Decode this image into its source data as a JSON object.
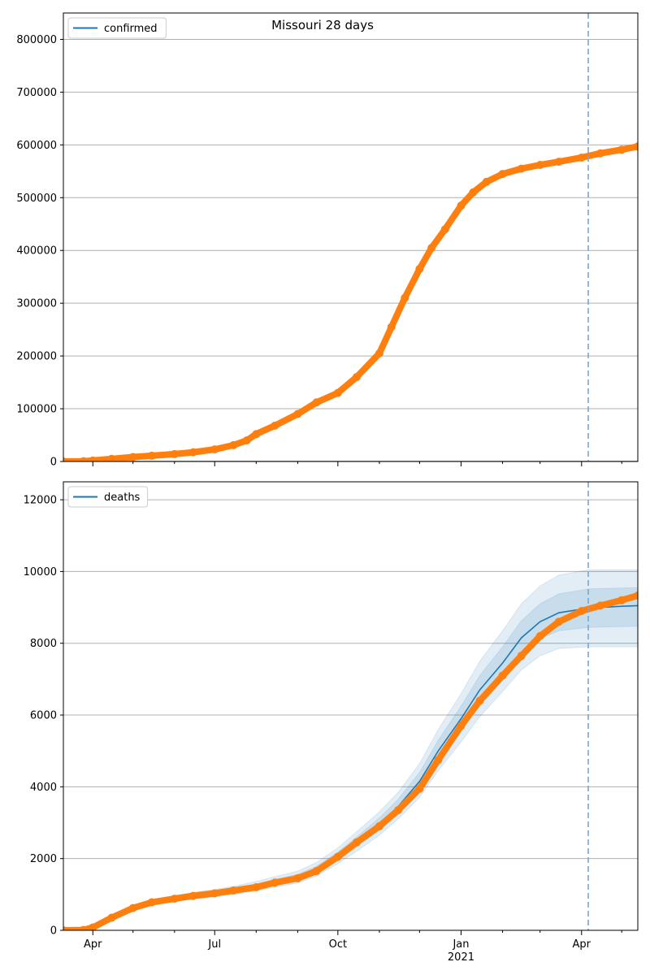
{
  "suptitle": "Missouri 28 days",
  "colors": {
    "model_line": "#1f77b4",
    "band": "#1f77b4",
    "observed": "#ff7f0e",
    "vline": "#7aa7d0",
    "grid": "#b0b0b0"
  },
  "x_axis": {
    "range": [
      "2020-03-10",
      "2021-05-13"
    ],
    "major_ticks": [
      {
        "date": "2020-04-01",
        "label": "Apr",
        "sublabel": ""
      },
      {
        "date": "2020-07-01",
        "label": "Jul",
        "sublabel": ""
      },
      {
        "date": "2020-10-01",
        "label": "Oct",
        "sublabel": ""
      },
      {
        "date": "2021-01-01",
        "label": "Jan",
        "sublabel": "2021"
      },
      {
        "date": "2021-04-01",
        "label": "Apr",
        "sublabel": ""
      }
    ],
    "minor_ticks": [
      "2020-05-01",
      "2020-06-01",
      "2020-08-01",
      "2020-09-01",
      "2020-11-01",
      "2020-12-01",
      "2021-02-01",
      "2021-03-01",
      "2021-05-01"
    ]
  },
  "chart_data": [
    {
      "type": "line",
      "legend": {
        "label": "confirmed",
        "loc": "upper left"
      },
      "ylim": [
        0,
        850000
      ],
      "yticks": [
        0,
        100000,
        200000,
        300000,
        400000,
        500000,
        600000,
        700000,
        800000
      ],
      "ytick_labels": [
        "0",
        "100000",
        "200000",
        "300000",
        "400000",
        "500000",
        "600000",
        "700000",
        "800000"
      ],
      "grid": "horizontal",
      "forecast_start": "2021-04-06",
      "model": {
        "x": [
          "2020-03-10",
          "2021-05-13"
        ],
        "y": [
          0,
          0
        ]
      },
      "observed": {
        "x": [
          "2020-03-10",
          "2020-03-25",
          "2020-04-01",
          "2020-04-15",
          "2020-05-01",
          "2020-05-15",
          "2020-06-01",
          "2020-06-15",
          "2020-07-01",
          "2020-07-15",
          "2020-07-25",
          "2020-08-01",
          "2020-08-15",
          "2020-09-01",
          "2020-09-15",
          "2020-10-01",
          "2020-10-15",
          "2020-11-01",
          "2020-11-10",
          "2020-11-20",
          "2020-12-01",
          "2020-12-10",
          "2020-12-20",
          "2021-01-01",
          "2021-01-10",
          "2021-01-20",
          "2021-02-01",
          "2021-02-15",
          "2021-03-01",
          "2021-03-15",
          "2021-04-01",
          "2021-04-15",
          "2021-05-01",
          "2021-05-13"
        ],
        "y": [
          0,
          500,
          1800,
          5000,
          8500,
          11000,
          14000,
          17500,
          23000,
          31000,
          40000,
          52000,
          68000,
          90000,
          112000,
          130000,
          160000,
          205000,
          255000,
          310000,
          365000,
          405000,
          440000,
          485000,
          510000,
          530000,
          545000,
          555000,
          562000,
          568000,
          576000,
          584000,
          591000,
          597000
        ]
      }
    },
    {
      "type": "line",
      "legend": {
        "label": "deaths",
        "loc": "upper left"
      },
      "ylim": [
        0,
        12500
      ],
      "yticks": [
        0,
        2000,
        4000,
        6000,
        8000,
        10000,
        12000
      ],
      "ytick_labels": [
        "0",
        "2000",
        "4000",
        "6000",
        "8000",
        "10000",
        "12000"
      ],
      "grid": "horizontal",
      "forecast_start": "2021-04-06",
      "model": {
        "x": [
          "2020-03-10",
          "2020-03-25",
          "2020-04-01",
          "2020-04-15",
          "2020-05-01",
          "2020-05-15",
          "2020-06-01",
          "2020-06-15",
          "2020-07-01",
          "2020-07-15",
          "2020-08-01",
          "2020-08-15",
          "2020-09-01",
          "2020-09-15",
          "2020-10-01",
          "2020-10-15",
          "2020-11-01",
          "2020-11-15",
          "2020-12-01",
          "2020-12-15",
          "2021-01-01",
          "2021-01-15",
          "2021-02-01",
          "2021-02-15",
          "2021-03-01",
          "2021-03-15",
          "2021-04-06",
          "2021-04-15",
          "2021-05-01",
          "2021-05-13"
        ],
        "y": [
          0,
          10,
          80,
          350,
          620,
          780,
          880,
          960,
          1030,
          1110,
          1220,
          1340,
          1470,
          1680,
          2050,
          2450,
          2950,
          3450,
          4150,
          5000,
          5900,
          6700,
          7450,
          8150,
          8600,
          8850,
          8980,
          9000,
          9030,
          9050
        ]
      },
      "bands": [
        {
          "lower": [
            0,
            8,
            70,
            320,
            570,
            710,
            800,
            870,
            930,
            1000,
            1100,
            1200,
            1320,
            1510,
            1850,
            2200,
            2650,
            3100,
            3700,
            4450,
            5250,
            5950,
            6650,
            7250,
            7650,
            7850,
            7900,
            7900,
            7900,
            7900
          ],
          "upper": [
            0,
            12,
            90,
            380,
            680,
            860,
            970,
            1060,
            1140,
            1230,
            1360,
            1500,
            1650,
            1890,
            2300,
            2750,
            3300,
            3850,
            4650,
            5600,
            6600,
            7500,
            8350,
            9100,
            9600,
            9900,
            10050,
            10050,
            10050,
            10050
          ]
        },
        {
          "lower": [
            0,
            9,
            75,
            335,
            595,
            745,
            840,
            915,
            980,
            1055,
            1160,
            1270,
            1395,
            1595,
            1950,
            2325,
            2800,
            3275,
            3925,
            4725,
            5575,
            6325,
            7050,
            7700,
            8125,
            8350,
            8440,
            8450,
            8465,
            8475
          ],
          "upper": [
            0,
            11,
            85,
            365,
            650,
            820,
            925,
            1010,
            1085,
            1170,
            1290,
            1420,
            1560,
            1785,
            2180,
            2600,
            3130,
            3650,
            4400,
            5300,
            6250,
            7100,
            7900,
            8625,
            9100,
            9375,
            9515,
            9525,
            9540,
            9550
          ]
        }
      ],
      "observed": {
        "x": [
          "2020-03-10",
          "2020-03-25",
          "2020-04-01",
          "2020-04-15",
          "2020-05-01",
          "2020-05-15",
          "2020-06-01",
          "2020-06-15",
          "2020-07-01",
          "2020-07-15",
          "2020-08-01",
          "2020-08-15",
          "2020-09-01",
          "2020-09-15",
          "2020-10-01",
          "2020-10-15",
          "2020-11-01",
          "2020-11-15",
          "2020-12-01",
          "2020-12-15",
          "2021-01-01",
          "2021-01-15",
          "2021-02-01",
          "2021-02-15",
          "2021-03-01",
          "2021-03-15",
          "2021-04-01",
          "2021-04-15",
          "2021-05-01",
          "2021-05-13"
        ],
        "y": [
          0,
          10,
          80,
          350,
          620,
          780,
          880,
          960,
          1030,
          1110,
          1200,
          1330,
          1450,
          1650,
          2050,
          2450,
          2900,
          3350,
          3950,
          4750,
          5700,
          6400,
          7100,
          7650,
          8200,
          8600,
          8900,
          9050,
          9200,
          9330
        ]
      }
    }
  ]
}
